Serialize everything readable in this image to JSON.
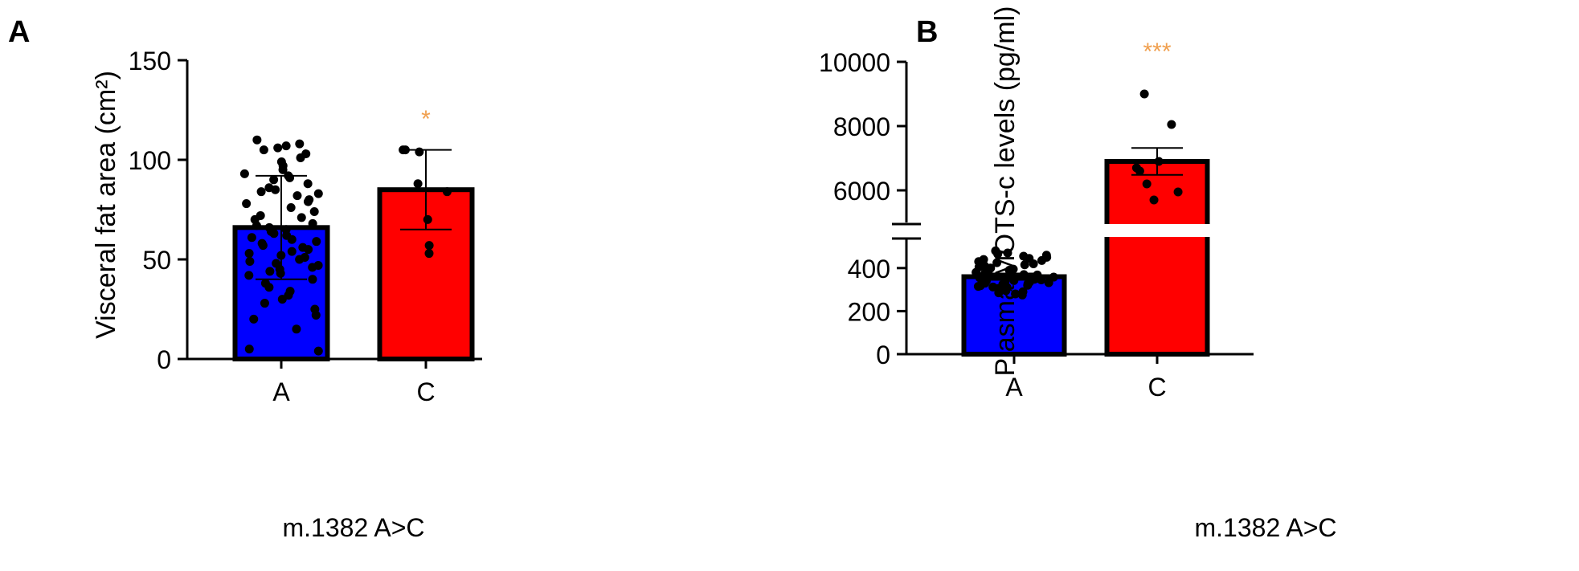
{
  "chart_data": [
    {
      "panel_label": "A",
      "type": "bar",
      "categories": [
        "A",
        "C"
      ],
      "values": [
        66,
        85
      ],
      "error_sd": [
        26,
        20
      ],
      "points": [
        [
          110,
          108,
          107,
          106,
          105,
          103,
          101,
          99,
          97,
          95,
          93,
          92,
          91,
          90,
          88,
          86,
          85,
          84,
          83,
          82,
          80,
          79,
          78,
          76,
          74,
          72,
          71,
          70,
          68,
          67,
          66,
          65,
          64,
          63,
          62,
          61,
          60,
          59,
          58,
          57,
          56,
          55,
          54,
          53,
          52,
          51,
          50,
          49,
          48,
          47,
          46,
          45,
          44,
          43,
          42,
          40,
          38,
          36,
          34,
          32,
          30,
          28,
          25,
          22,
          20,
          15,
          5,
          4
        ],
        [
          105,
          105,
          104,
          88,
          84,
          70,
          57,
          53
        ]
      ],
      "bar_colors": [
        "#0000ff",
        "#ff0000"
      ],
      "ylabel": "Visceral fat area (cm²)",
      "xlabel": "m.1382 A>C",
      "ylim": [
        0,
        150
      ],
      "yticks": [
        0,
        50,
        100,
        150
      ],
      "significance": "*",
      "significance_color": "#f0a050",
      "grid": false
    },
    {
      "panel_label": "B",
      "type": "bar",
      "categories": [
        "A",
        "C"
      ],
      "values": [
        360,
        6900
      ],
      "error_sem": [
        15,
        420
      ],
      "points": [
        [
          480,
          470,
          465,
          460,
          455,
          450,
          445,
          440,
          435,
          430,
          425,
          420,
          415,
          410,
          405,
          400,
          395,
          390,
          385,
          380,
          375,
          370,
          368,
          365,
          362,
          360,
          358,
          355,
          352,
          350,
          348,
          345,
          342,
          340,
          338,
          335,
          332,
          330,
          328,
          325,
          322,
          320,
          318,
          315,
          312,
          310,
          305,
          300,
          295,
          290,
          285,
          280,
          275
        ],
        [
          9000,
          8050,
          6900,
          6700,
          6600,
          6200,
          5950,
          5700
        ]
      ],
      "bar_colors": [
        "#0000ff",
        "#ff0000"
      ],
      "ylabel": "Plasma MOTS-c levels (pg/ml)",
      "xlabel": "m.1382 A>C",
      "ylim": [
        0,
        10000
      ],
      "axis_break": [
        500,
        5000
      ],
      "yticks": [
        0,
        200,
        400,
        6000,
        8000,
        10000
      ],
      "significance": "***",
      "significance_color": "#f0a050",
      "grid": false
    }
  ]
}
